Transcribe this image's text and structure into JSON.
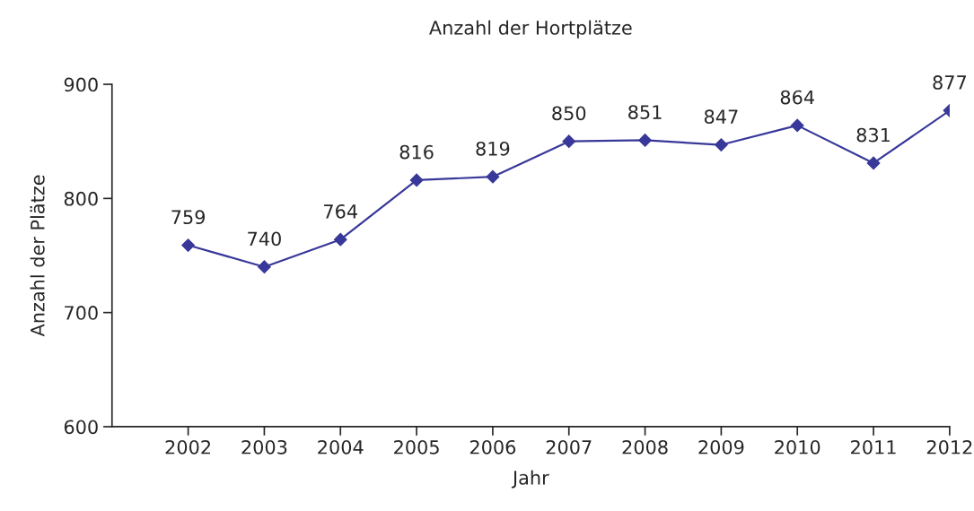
{
  "chart_data": {
    "type": "line",
    "title": "Anzahl der Hortplätze",
    "xlabel": "Jahr",
    "ylabel": "Anzahl der Plätze",
    "categories": [
      "2002",
      "2003",
      "2004",
      "2005",
      "2006",
      "2007",
      "2008",
      "2009",
      "2010",
      "2011",
      "2012"
    ],
    "series": [
      {
        "color": "#38389a",
        "values": [
          759,
          740,
          764,
          816,
          819,
          850,
          851,
          847,
          864,
          831,
          877
        ]
      }
    ],
    "ylim": [
      600,
      900
    ],
    "yticks": [
      600,
      700,
      800,
      900
    ],
    "grid": false,
    "legend": false,
    "marker": "diamond",
    "line_style": "solid",
    "data_labels": true
  }
}
